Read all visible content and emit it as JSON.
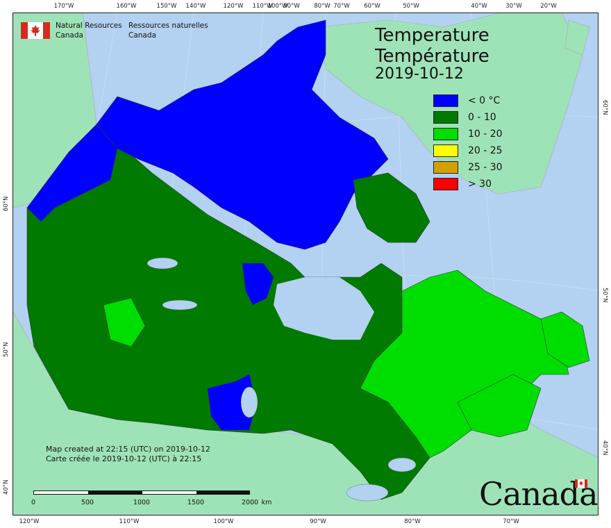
{
  "map": {
    "title_en": "Temperature",
    "title_fr": "Température",
    "date": "2019-10-12"
  },
  "agency": {
    "name_en_line1": "Natural Resources",
    "name_en_line2": "Canada",
    "name_fr_line1": "Ressources naturelles",
    "name_fr_line2": "Canada",
    "flag_red": "#d52b1e"
  },
  "legend": [
    {
      "label": "< 0 °C",
      "color": "#0000ff"
    },
    {
      "label": "0 - 10",
      "color": "#007a00"
    },
    {
      "label": "10 - 20",
      "color": "#00dd00"
    },
    {
      "label": "20 - 25",
      "color": "#ffff00"
    },
    {
      "label": "25 - 30",
      "color": "#d4a000"
    },
    {
      "label": "> 30",
      "color": "#ff0000"
    }
  ],
  "credits": {
    "line_en": "Map created at 22:15 (UTC) on 2019-10-12",
    "line_fr": "Carte créée le 2019-10-12 (UTC) à 22:15"
  },
  "scale": {
    "labels": [
      "0",
      "500",
      "1000",
      "1500",
      "2000"
    ],
    "unit": "km"
  },
  "ticks": {
    "top": [
      "170°W",
      "160°W",
      "150°W",
      "140°W",
      "120°W",
      "110°W",
      "100°W",
      "90°W",
      "80°W",
      "70°W",
      "60°W",
      "50°W",
      "40°W",
      "30°W",
      "20°W"
    ],
    "bottom": [
      "120°W",
      "110°W",
      "100°W",
      "90°W",
      "80°W",
      "70°W"
    ],
    "left": [
      "60°N",
      "50°N",
      "40°N"
    ],
    "right": [
      "60°N",
      "50°N",
      "40°N"
    ]
  },
  "wordmark": "Canada",
  "colors": {
    "ocean": "#b3d1f0",
    "foreign_land": "#9ee3b8",
    "border": "#222222"
  }
}
